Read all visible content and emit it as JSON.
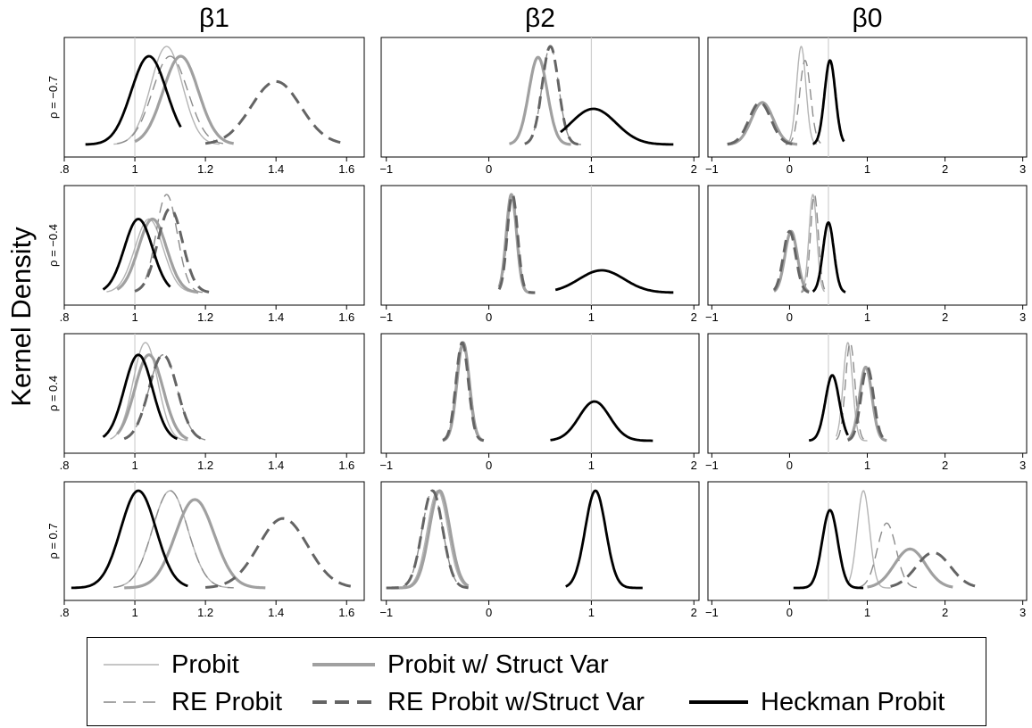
{
  "figure": {
    "y_axis_title": "Kernel Density",
    "column_titles": [
      "β1",
      "β2",
      "β0"
    ],
    "row_labels": [
      "ρ = −0.7",
      "ρ = −0.4",
      "ρ = 0.4",
      "ρ = 0.7"
    ]
  },
  "legend": {
    "items": [
      {
        "label": "Probit",
        "color": "#b4b4b4",
        "style": "thin-solid"
      },
      {
        "label": "Probit w/ Struct Var",
        "color": "#a0a0a0",
        "style": "thick-solid"
      },
      {
        "label": "RE Probit",
        "color": "#8c8c8c",
        "style": "thin-dash"
      },
      {
        "label": "RE Probit w/Struct Var",
        "color": "#646464",
        "style": "thick-dash"
      },
      {
        "label": "Heckman Probit",
        "color": "#000000",
        "style": "thick-solid"
      }
    ]
  },
  "chart_data": {
    "type": "line",
    "subtype": "kernel-density-grid",
    "y_axis_title": "Kernel Density",
    "columns": [
      {
        "title": "β1",
        "xlim": [
          0.8,
          1.65
        ],
        "ticks": [
          0.8,
          1.0,
          1.2,
          1.4,
          1.6
        ],
        "tick_labels": [
          ".8",
          "1",
          "1.2",
          "1.4",
          "1.6"
        ],
        "true_value": 1.0
      },
      {
        "title": "β2",
        "xlim": [
          -1.05,
          2.05
        ],
        "ticks": [
          -1,
          0,
          1,
          2
        ],
        "tick_labels": [
          "−1",
          "0",
          "1",
          "2"
        ],
        "true_value": 1.0
      },
      {
        "title": "β0",
        "xlim": [
          -1.05,
          3.05
        ],
        "ticks": [
          -1,
          0,
          1,
          2,
          3
        ],
        "tick_labels": [
          "−1",
          "0",
          "1",
          "2",
          "3"
        ],
        "true_value": 0.5
      }
    ],
    "rows": [
      {
        "label": "ρ = −0.7",
        "panels": [
          {
            "series": {
              "Probit": {
                "mean": 1.09,
                "sd": 0.045,
                "range": [
                  0.94,
                  1.24
                ]
              },
              "Probit w/ Struct Var": {
                "mean": 1.13,
                "sd": 0.05,
                "range": [
                  1.0,
                  1.28
                ]
              },
              "RE Probit": {
                "mean": 1.1,
                "sd": 0.05,
                "range": [
                  0.95,
                  1.25
                ]
              },
              "RE Probit w/Struct Var": {
                "mean": 1.4,
                "sd": 0.07,
                "range": [
                  1.2,
                  1.6
                ]
              },
              "Heckman Probit": {
                "mean": 1.04,
                "sd": 0.05,
                "range": [
                  0.86,
                  1.13
                ]
              }
            }
          },
          {
            "series": {
              "Probit": {
                "mean": 0.48,
                "sd": 0.09,
                "range": [
                  0.2,
                  0.8
                ]
              },
              "Probit w/ Struct Var": {
                "mean": 0.48,
                "sd": 0.09,
                "range": [
                  0.2,
                  0.8
                ]
              },
              "RE Probit": {
                "mean": 0.6,
                "sd": 0.08,
                "range": [
                  0.35,
                  0.9
                ]
              },
              "RE Probit w/Struct Var": {
                "mean": 0.6,
                "sd": 0.08,
                "range": [
                  0.35,
                  0.9
                ]
              },
              "Heckman Probit": {
                "mean": 1.02,
                "sd": 0.22,
                "range": [
                  0.7,
                  1.8
                ]
              }
            }
          },
          {
            "series": {
              "Probit": {
                "mean": 0.15,
                "sd": 0.06,
                "range": [
                  -0.05,
                  0.35
                ]
              },
              "Probit w/ Struct Var": {
                "mean": -0.35,
                "sd": 0.14,
                "range": [
                  -0.8,
                  0.1
                ]
              },
              "RE Probit": {
                "mean": 0.2,
                "sd": 0.07,
                "range": [
                  -0.05,
                  0.4
                ]
              },
              "RE Probit w/Struct Var": {
                "mean": -0.38,
                "sd": 0.14,
                "range": [
                  -0.8,
                  0.05
                ]
              },
              "Heckman Probit": {
                "mean": 0.52,
                "sd": 0.07,
                "range": [
                  0.3,
                  0.7
                ]
              }
            }
          }
        ]
      },
      {
        "label": "ρ = −0.4",
        "panels": [
          {
            "series": {
              "Probit": {
                "mean": 1.04,
                "sd": 0.04,
                "range": [
                  0.92,
                  1.17
                ]
              },
              "Probit w/ Struct Var": {
                "mean": 1.05,
                "sd": 0.04,
                "range": [
                  0.95,
                  1.18
                ]
              },
              "RE Probit": {
                "mean": 1.09,
                "sd": 0.03,
                "range": [
                  1.0,
                  1.2
                ]
              },
              "RE Probit w/Struct Var": {
                "mean": 1.1,
                "sd": 0.035,
                "range": [
                  1.0,
                  1.21
                ]
              },
              "Heckman Probit": {
                "mean": 1.01,
                "sd": 0.04,
                "range": [
                  0.91,
                  1.1
                ]
              }
            }
          },
          {
            "series": {
              "Probit": {
                "mean": 0.22,
                "sd": 0.05,
                "range": [
                  0.1,
                  0.45
                ]
              },
              "Probit w/ Struct Var": {
                "mean": 0.22,
                "sd": 0.05,
                "range": [
                  0.1,
                  0.45
                ]
              },
              "RE Probit": {
                "mean": 0.23,
                "sd": 0.05,
                "range": [
                  0.1,
                  0.45
                ]
              },
              "RE Probit w/Struct Var": {
                "mean": 0.23,
                "sd": 0.05,
                "range": [
                  0.1,
                  0.45
                ]
              },
              "Heckman Probit": {
                "mean": 1.1,
                "sd": 0.22,
                "range": [
                  0.65,
                  1.8
                ]
              }
            }
          },
          {
            "series": {
              "Probit": {
                "mean": 0.3,
                "sd": 0.05,
                "range": [
                  0.15,
                  0.45
                ]
              },
              "Probit w/ Struct Var": {
                "mean": 0.02,
                "sd": 0.08,
                "range": [
                  -0.2,
                  0.25
                ]
              },
              "RE Probit": {
                "mean": 0.32,
                "sd": 0.05,
                "range": [
                  0.15,
                  0.45
                ]
              },
              "RE Probit w/Struct Var": {
                "mean": 0.0,
                "sd": 0.08,
                "range": [
                  -0.2,
                  0.25
                ]
              },
              "Heckman Probit": {
                "mean": 0.5,
                "sd": 0.07,
                "range": [
                  0.3,
                  0.72
                ]
              }
            }
          }
        ]
      },
      {
        "label": "ρ = 0.4",
        "panels": [
          {
            "series": {
              "Probit": {
                "mean": 1.03,
                "sd": 0.035,
                "range": [
                  0.93,
                  1.15
                ]
              },
              "Probit w/ Struct Var": {
                "mean": 1.04,
                "sd": 0.04,
                "range": [
                  0.95,
                  1.15
                ]
              },
              "RE Probit": {
                "mean": 1.08,
                "sd": 0.04,
                "range": [
                  0.97,
                  1.2
                ]
              },
              "RE Probit w/Struct Var": {
                "mean": 1.08,
                "sd": 0.04,
                "range": [
                  0.97,
                  1.2
                ]
              },
              "Heckman Probit": {
                "mean": 1.01,
                "sd": 0.04,
                "range": [
                  0.91,
                  1.12
                ]
              }
            }
          },
          {
            "series": {
              "Probit": {
                "mean": -0.25,
                "sd": 0.06,
                "range": [
                  -0.45,
                  -0.05
                ]
              },
              "Probit w/ Struct Var": {
                "mean": -0.25,
                "sd": 0.06,
                "range": [
                  -0.45,
                  -0.05
                ]
              },
              "RE Probit": {
                "mean": -0.26,
                "sd": 0.06,
                "range": [
                  -0.45,
                  -0.05
                ]
              },
              "RE Probit w/Struct Var": {
                "mean": -0.26,
                "sd": 0.06,
                "range": [
                  -0.45,
                  -0.05
                ]
              },
              "Heckman Probit": {
                "mean": 1.03,
                "sd": 0.15,
                "range": [
                  0.6,
                  1.6
                ]
              }
            }
          },
          {
            "series": {
              "Probit": {
                "mean": 0.75,
                "sd": 0.06,
                "range": [
                  0.6,
                  1.0
                ]
              },
              "Probit w/ Struct Var": {
                "mean": 0.98,
                "sd": 0.08,
                "range": [
                  0.75,
                  1.25
                ]
              },
              "RE Probit": {
                "mean": 0.78,
                "sd": 0.06,
                "range": [
                  0.6,
                  1.0
                ]
              },
              "RE Probit w/Struct Var": {
                "mean": 1.0,
                "sd": 0.08,
                "range": [
                  0.75,
                  1.25
                ]
              },
              "Heckman Probit": {
                "mean": 0.55,
                "sd": 0.09,
                "range": [
                  0.25,
                  0.75
                ]
              }
            }
          }
        ]
      },
      {
        "label": "ρ = 0.7",
        "panels": [
          {
            "series": {
              "Probit": {
                "mean": 1.1,
                "sd": 0.05,
                "range": [
                  0.94,
                  1.28
                ]
              },
              "Probit w/ Struct Var": {
                "mean": 1.17,
                "sd": 0.055,
                "range": [
                  0.97,
                  1.37
                ]
              },
              "RE Probit": {
                "mean": 1.1,
                "sd": 0.05,
                "range": [
                  0.94,
                  1.28
                ]
              },
              "RE Probit w/Struct Var": {
                "mean": 1.42,
                "sd": 0.07,
                "range": [
                  1.2,
                  1.63
                ]
              },
              "Heckman Probit": {
                "mean": 1.01,
                "sd": 0.05,
                "range": [
                  0.82,
                  1.15
                ]
              }
            }
          },
          {
            "series": {
              "Probit": {
                "mean": -0.5,
                "sd": 0.1,
                "range": [
                  -0.95,
                  -0.2
                ]
              },
              "Probit w/ Struct Var": {
                "mean": -0.48,
                "sd": 0.1,
                "range": [
                  -0.95,
                  -0.2
                ]
              },
              "RE Probit": {
                "mean": -0.55,
                "sd": 0.1,
                "range": [
                  -1.0,
                  -0.2
                ]
              },
              "RE Probit w/Struct Var": {
                "mean": -0.55,
                "sd": 0.1,
                "range": [
                  -1.0,
                  -0.2
                ]
              },
              "Heckman Probit": {
                "mean": 1.04,
                "sd": 0.1,
                "range": [
                  0.75,
                  1.5
                ]
              }
            }
          },
          {
            "series": {
              "Probit": {
                "mean": 0.95,
                "sd": 0.08,
                "range": [
                  0.75,
                  1.3
                ]
              },
              "Probit w/ Struct Var": {
                "mean": 1.55,
                "sd": 0.2,
                "range": [
                  1.0,
                  2.1
                ]
              },
              "RE Probit": {
                "mean": 1.25,
                "sd": 0.12,
                "range": [
                  0.9,
                  1.7
                ]
              },
              "RE Probit w/Struct Var": {
                "mean": 1.85,
                "sd": 0.22,
                "range": [
                  1.3,
                  2.4
                ]
              },
              "Heckman Probit": {
                "mean": 0.52,
                "sd": 0.1,
                "range": [
                  0.05,
                  0.95
                ]
              }
            }
          }
        ]
      }
    ]
  }
}
